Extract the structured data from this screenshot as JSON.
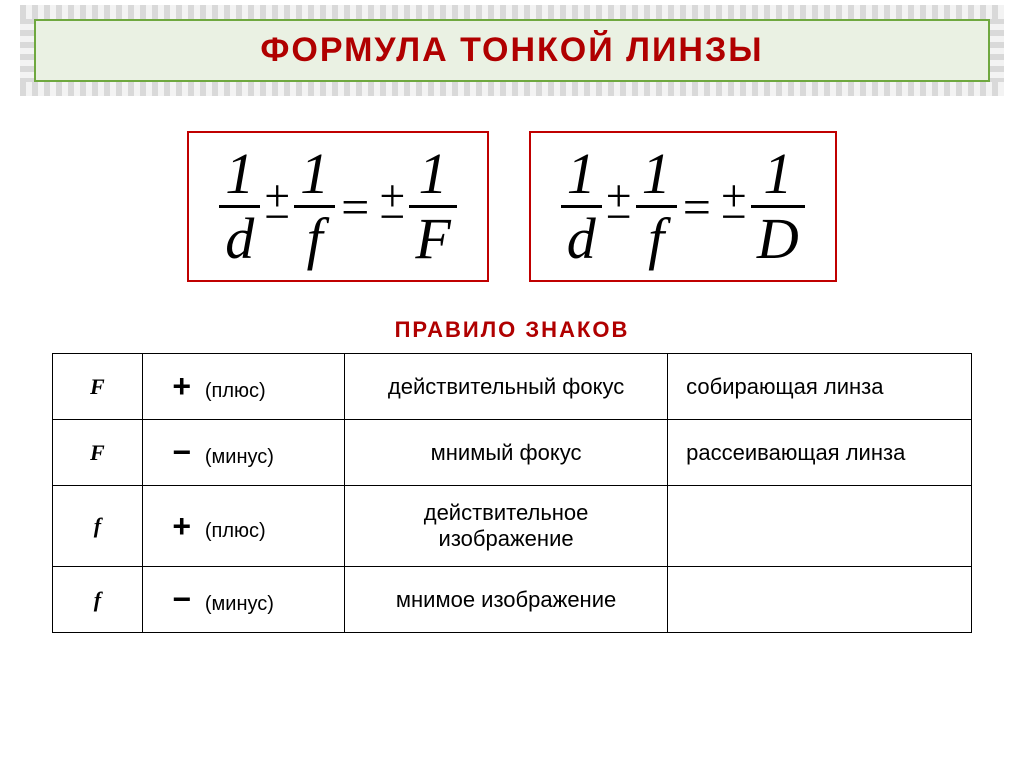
{
  "title": "ФОРМУЛА  ТОНКОЙ  ЛИНЗЫ",
  "subtitle": "ПРАВИЛО   ЗНАКОВ",
  "colors": {
    "title_text": "#b00000",
    "title_bg": "#eaf1e3",
    "title_border": "#6fa83f",
    "formula_border": "#c00000",
    "table_border": "#000000"
  },
  "formulas": {
    "left": {
      "terms": [
        {
          "num": "1",
          "den": "d"
        },
        {
          "num": "1",
          "den": "f"
        },
        {
          "num": "1",
          "den": "F"
        }
      ]
    },
    "right": {
      "terms": [
        {
          "num": "1",
          "den": "d"
        },
        {
          "num": "1",
          "den": "f"
        },
        {
          "num": "1",
          "den": "D"
        }
      ]
    }
  },
  "rules": [
    {
      "symbol": "F",
      "sign": "+",
      "sign_label": "(плюс)",
      "desc": "действительный фокус",
      "lens": "собирающая линза"
    },
    {
      "symbol": "F",
      "sign": "−",
      "sign_label": "(минус)",
      "desc": "мнимый фокус",
      "lens": "рассеивающая линза"
    },
    {
      "symbol": "f",
      "sign": "+",
      "sign_label": "(плюс)",
      "desc": "действительное изображение",
      "lens": ""
    },
    {
      "symbol": "f",
      "sign": "−",
      "sign_label": "(минус)",
      "desc": "мнимое изображение",
      "lens": ""
    }
  ]
}
